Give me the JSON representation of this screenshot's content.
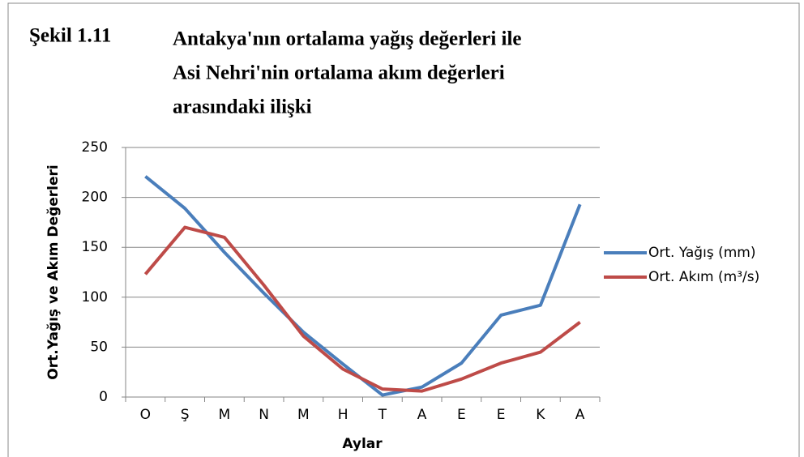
{
  "chart_data": {
    "type": "line",
    "figure_label": "Şekil 1.11",
    "title": [
      "Antakya'nın ortalama yağış değerleri ile",
      "Asi Nehri'nin ortalama akım değerleri",
      "arasındaki ilişki"
    ],
    "y_label": "Ort.Yağış ve Akım Değerleri",
    "x_label": "Aylar",
    "categories": [
      "O",
      "Ş",
      "M",
      "N",
      "M",
      "H",
      "T",
      "A",
      "E",
      "E",
      "K",
      "A"
    ],
    "series": [
      {
        "name": "Ort. Yağış (mm)",
        "color": "#4a7ebb",
        "values": [
          221,
          189,
          145,
          104,
          65,
          33,
          2,
          10,
          34,
          82,
          92,
          193
        ]
      },
      {
        "name": "Ort. Akım (m³/s)",
        "color": "#be4b48",
        "values": [
          123,
          170,
          160,
          112,
          61,
          28,
          8,
          6,
          18,
          34,
          45,
          75
        ]
      }
    ],
    "ylim": [
      0,
      250
    ],
    "yticks": [
      0,
      50,
      100,
      150,
      200,
      250
    ],
    "grid": true,
    "legend": "right"
  }
}
